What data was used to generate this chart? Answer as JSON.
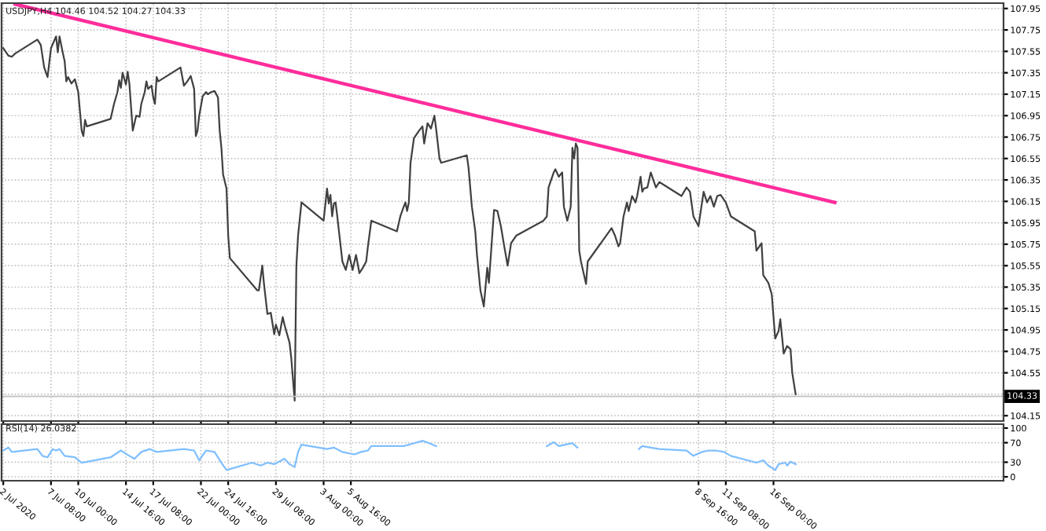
{
  "chart_data": [
    {
      "type": "line",
      "title": "USDJPY,H4 104.46 104.52 104.27 104.33",
      "xlim": [
        "2020-07-02T12:00",
        "2020-10-08T12:00"
      ],
      "xticks": [
        "2020-07-02T16:00",
        "2020-07-07T08:00",
        "2020-07-10T00:00",
        "2020-07-14T16:00",
        "2020-07-17T08:00",
        "2020-07-22T00:00",
        "2020-07-24T16:00",
        "2020-07-29T08:00",
        "2020-08-03T00:00",
        "2020-08-05T16:00",
        "2020-09-08T16:00",
        "2020-09-11T08:00",
        "2020-09-16T00:00"
      ],
      "ylim": [
        104.1,
        108.0
      ],
      "yticks": [
        104.15,
        {
          "value": 104.35,
          "label": null
        },
        104.55,
        104.75,
        104.95,
        105.15,
        105.35,
        105.55,
        105.75,
        105.95,
        106.15,
        106.35,
        106.55,
        106.75,
        106.95,
        107.15,
        107.35,
        107.55,
        107.75,
        107.95
      ],
      "tick_labels": "y",
      "grid": true,
      "line_style": "solid",
      "ref_lines": [
        {
          "axis": "y",
          "value": 104.33,
          "label": "104.33",
          "color": "#c0c0c0"
        }
      ],
      "series": [
        {
          "color": "#404040",
          "x": [
            "2020-07-02T16:00",
            "2020-07-03T04:00",
            "2020-07-03T12:00",
            "2020-07-03T20:00",
            "2020-07-06T00:00",
            "2020-07-06T08:00",
            "2020-07-06T16:00",
            "2020-07-07T00:00",
            "2020-07-07T08:00",
            "2020-07-07T20:00",
            "2020-07-08T00:00",
            "2020-07-08T04:00",
            "2020-07-08T12:00",
            "2020-07-08T16:00",
            "2020-07-08T20:00",
            "2020-07-09T00:00",
            "2020-07-09T08:00",
            "2020-07-09T16:00",
            "2020-07-10T00:00",
            "2020-07-10T08:00",
            "2020-07-10T12:00",
            "2020-07-10T16:00",
            "2020-07-10T20:00",
            "2020-07-13T04:00",
            "2020-07-13T12:00",
            "2020-07-13T20:00",
            "2020-07-14T00:00",
            "2020-07-14T04:00",
            "2020-07-14T08:00",
            "2020-07-14T16:00",
            "2020-07-14T20:00",
            "2020-07-15T00:00",
            "2020-07-15T04:00",
            "2020-07-15T08:00",
            "2020-07-15T16:00",
            "2020-07-16T00:00",
            "2020-07-16T04:00",
            "2020-07-16T12:00",
            "2020-07-16T16:00",
            "2020-07-16T20:00",
            "2020-07-17T04:00",
            "2020-07-17T08:00",
            "2020-07-17T12:00",
            "2020-07-17T16:00",
            "2020-07-17T20:00",
            "2020-07-20T00:00",
            "2020-07-20T08:00",
            "2020-07-20T16:00",
            "2020-07-21T00:00",
            "2020-07-21T08:00",
            "2020-07-21T12:00",
            "2020-07-21T16:00",
            "2020-07-21T20:00",
            "2020-07-22T04:00",
            "2020-07-22T12:00",
            "2020-07-22T16:00",
            "2020-07-23T00:00",
            "2020-07-23T08:00",
            "2020-07-23T16:00",
            "2020-07-23T20:00",
            "2020-07-24T00:00",
            "2020-07-24T04:00",
            "2020-07-24T12:00",
            "2020-07-24T16:00",
            "2020-07-24T20:00",
            "2020-07-27T12:00",
            "2020-07-27T16:00",
            "2020-07-28T00:00",
            "2020-07-28T04:00",
            "2020-07-28T12:00",
            "2020-07-28T20:00",
            "2020-07-29T04:00",
            "2020-07-29T08:00",
            "2020-07-29T16:00",
            "2020-07-30T00:00",
            "2020-07-30T04:00",
            "2020-07-30T16:00",
            "2020-07-30T20:00",
            "2020-07-31T04:00",
            "2020-07-31T08:00",
            "2020-07-31T12:00",
            "2020-07-31T20:00",
            "2020-08-03T00:00",
            "2020-08-03T08:00",
            "2020-08-03T12:00",
            "2020-08-03T16:00",
            "2020-08-03T20:00",
            "2020-08-04T00:00",
            "2020-08-04T04:00",
            "2020-08-04T08:00",
            "2020-08-04T16:00",
            "2020-08-04T20:00",
            "2020-08-05T04:00",
            "2020-08-05T12:00",
            "2020-08-05T20:00",
            "2020-08-06T04:00",
            "2020-08-06T12:00",
            "2020-08-06T20:00",
            "2020-08-07T04:00",
            "2020-08-07T08:00",
            "2020-08-07T16:00",
            "2020-08-10T04:00",
            "2020-08-10T12:00",
            "2020-08-10T20:00",
            "2020-08-11T00:00",
            "2020-08-11T04:00",
            "2020-08-11T08:00",
            "2020-08-11T12:00",
            "2020-08-11T20:00",
            "2020-08-12T08:00",
            "2020-08-12T16:00",
            "2020-08-12T20:00",
            "2020-08-13T04:00",
            "2020-08-13T12:00",
            "2020-08-13T20:00",
            "2020-08-14T00:00",
            "2020-08-14T08:00",
            "2020-08-14T12:00",
            "2020-08-17T00:00",
            "2020-08-17T04:00",
            "2020-08-17T12:00",
            "2020-08-17T20:00",
            "2020-08-18T00:00",
            "2020-08-18T08:00",
            "2020-08-18T16:00",
            "2020-08-19T00:00",
            "2020-08-19T04:00",
            "2020-08-19T16:00",
            "2020-08-20T00:00",
            "2020-08-20T08:00",
            "2020-08-20T16:00",
            "2020-08-21T00:00",
            "2020-08-21T08:00",
            "2020-08-21T20:00",
            "2020-08-24T12:00",
            "2020-08-24T20:00",
            "2020-08-25T00:00",
            "2020-08-25T12:00",
            "2020-08-25T16:00",
            "2020-08-26T00:00",
            "2020-08-26T08:00",
            "2020-08-26T12:00",
            "2020-08-26T20:00",
            "2020-08-27T04:00",
            "2020-08-27T08:00",
            "2020-08-27T12:00",
            "2020-08-27T16:00",
            "2020-08-27T20:00",
            "2020-08-28T00:00",
            "2020-08-28T04:00",
            "2020-08-28T16:00",
            "2020-08-28T20:00",
            "2020-08-31T04:00",
            "2020-08-31T12:00",
            "2020-08-31T20:00",
            "2020-09-01T00:00",
            "2020-09-01T08:00",
            "2020-09-01T16:00",
            "2020-09-01T20:00",
            "2020-09-02T04:00",
            "2020-09-02T12:00",
            "2020-09-02T16:00",
            "2020-09-03T00:00",
            "2020-09-03T04:00",
            "2020-09-03T08:00",
            "2020-09-03T16:00",
            "2020-09-04T00:00",
            "2020-09-04T12:00",
            "2020-09-04T20:00",
            "2020-09-07T00:00",
            "2020-09-07T12:00",
            "2020-09-07T20:00",
            "2020-09-08T04:00",
            "2020-09-08T16:00",
            "2020-09-09T04:00",
            "2020-09-09T12:00",
            "2020-09-09T20:00",
            "2020-09-10T04:00",
            "2020-09-10T12:00",
            "2020-09-10T20:00",
            "2020-09-11T08:00",
            "2020-09-11T20:00",
            "2020-09-14T04:00",
            "2020-09-14T08:00",
            "2020-09-14T20:00",
            "2020-09-15T00:00",
            "2020-09-15T12:00",
            "2020-09-15T20:00",
            "2020-09-16T04:00",
            "2020-09-16T12:00",
            "2020-09-16T16:00",
            "2020-09-17T00:00",
            "2020-09-17T08:00",
            "2020-09-17T16:00",
            "2020-09-17T20:00",
            "2020-09-18T04:00"
          ],
          "values": [
            107.58,
            107.51,
            107.5,
            107.53,
            107.66,
            107.61,
            107.4,
            107.31,
            107.58,
            107.69,
            107.54,
            107.69,
            107.53,
            107.46,
            107.27,
            107.31,
            107.25,
            107.29,
            107.17,
            106.81,
            106.76,
            106.91,
            106.85,
            106.92,
            107.06,
            107.17,
            107.28,
            107.21,
            107.35,
            107.24,
            107.36,
            107.25,
            107.03,
            106.81,
            106.95,
            106.94,
            107.06,
            107.17,
            107.27,
            107.2,
            107.23,
            107.12,
            107.06,
            107.31,
            107.27,
            107.4,
            107.23,
            107.27,
            107.32,
            107.2,
            106.76,
            106.81,
            106.95,
            107.13,
            107.17,
            107.15,
            107.17,
            107.18,
            107.12,
            106.81,
            106.65,
            106.4,
            106.27,
            105.83,
            105.62,
            105.32,
            105.32,
            105.55,
            105.38,
            105.1,
            105.11,
            104.91,
            105.0,
            104.9,
            105.07,
            105.0,
            104.83,
            104.69,
            104.29,
            105.55,
            105.83,
            106.14,
            105.97,
            106.27,
            106.13,
            106.21,
            106.01,
            106.13,
            106.14,
            106.01,
            105.73,
            105.59,
            105.51,
            105.65,
            105.51,
            105.65,
            105.48,
            105.53,
            105.59,
            105.73,
            105.97,
            105.87,
            106.01,
            106.1,
            106.14,
            106.06,
            106.14,
            106.51,
            106.74,
            106.81,
            106.85,
            106.69,
            106.88,
            106.83,
            106.95,
            106.83,
            106.55,
            106.51,
            106.58,
            106.47,
            106.1,
            105.87,
            105.65,
            105.32,
            105.17,
            105.53,
            105.39,
            106.07,
            106.06,
            105.92,
            105.73,
            105.55,
            105.76,
            105.83,
            105.97,
            106.01,
            106.28,
            106.42,
            106.45,
            106.38,
            106.42,
            106.1,
            105.97,
            106.1,
            106.65,
            106.55,
            106.69,
            106.65,
            105.69,
            105.59,
            105.38,
            105.59,
            105.9,
            105.83,
            105.73,
            105.76,
            106.01,
            106.14,
            106.06,
            106.2,
            106.14,
            106.2,
            106.38,
            106.24,
            106.27,
            106.28,
            106.42,
            106.28,
            106.33,
            106.2,
            106.28,
            106.24,
            106.01,
            105.92,
            106.24,
            106.14,
            106.2,
            106.1,
            106.2,
            106.21,
            106.14,
            106.01,
            105.87,
            105.69,
            105.76,
            105.46,
            105.39,
            105.28,
            104.87,
            104.94,
            105.05,
            104.73,
            104.8,
            104.77,
            104.55,
            104.35
          ]
        },
        {
          "type": "line",
          "color": "#ff2d9b",
          "x": [
            "2020-07-03T20:00",
            "2020-09-22T00:00"
          ],
          "values": [
            107.99,
            106.14
          ]
        }
      ]
    },
    {
      "type": "line",
      "title": "RSI(14) 26.0382",
      "xlim": [
        "2020-07-02T12:00",
        "2020-10-08T12:00"
      ],
      "xticks": [
        {
          "value": "2020-07-02T16:00",
          "label": "2 Jul 2020"
        },
        {
          "value": "2020-07-07T08:00",
          "label": "7 Jul 08:00"
        },
        {
          "value": "2020-07-10T00:00",
          "label": "10 Jul 00:00"
        },
        {
          "value": "2020-07-14T16:00",
          "label": "14 Jul 16:00"
        },
        {
          "value": "2020-07-17T08:00",
          "label": "17 Jul 08:00"
        },
        {
          "value": "2020-07-22T00:00",
          "label": "22 Jul 00:00"
        },
        {
          "value": "2020-07-24T16:00",
          "label": "24 Jul 16:00"
        },
        {
          "value": "2020-07-29T08:00",
          "label": "29 Jul 08:00"
        },
        {
          "value": "2020-08-03T00:00",
          "label": "3 Aug 00:00"
        },
        {
          "value": "2020-08-05T16:00",
          "label": "5 Aug 16:00"
        },
        {
          "value": "2020-09-08T16:00",
          "label": "8 Sep 16:00"
        },
        {
          "value": "2020-09-11T08:00",
          "label": "11 Sep 08:00"
        },
        {
          "value": "2020-09-16T00:00",
          "label": "16 Sep 00:00"
        }
      ],
      "ylim": [
        -8,
        108
      ],
      "yticks": [
        0,
        30,
        70,
        100
      ],
      "grid": true,
      "line_style": "solid",
      "series": [
        {
          "color": "#7fbfff",
          "x": [
            "2020-07-02T16:00",
            "2020-07-03T04:00",
            "2020-07-03T12:00",
            "2020-07-06T00:00",
            "2020-07-06T12:00",
            "2020-07-07T00:00",
            "2020-07-07T12:00",
            "2020-07-07T20:00",
            "2020-07-08T04:00",
            "2020-07-08T16:00",
            "2020-07-09T16:00",
            "2020-07-10T08:00",
            "2020-07-13T04:00",
            "2020-07-14T04:00",
            "2020-07-15T00:00",
            "2020-07-15T12:00",
            "2020-07-16T04:00",
            "2020-07-17T00:00",
            "2020-07-17T16:00",
            "2020-07-20T08:00",
            "2020-07-21T08:00",
            "2020-07-21T20:00",
            "2020-07-22T12:00",
            "2020-07-23T08:00",
            "2020-07-24T00:00",
            "2020-07-24T12:00",
            "2020-07-27T00:00",
            "2020-07-27T20:00",
            "2020-07-28T12:00",
            "2020-07-29T04:00",
            "2020-07-30T04:00",
            "2020-07-30T16:00",
            "2020-07-31T04:00",
            "2020-07-31T12:00",
            "2020-07-31T20:00",
            "2020-08-03T08:00",
            "2020-08-04T00:00",
            "2020-08-04T20:00",
            "2020-08-06T00:00",
            "2020-08-06T16:00",
            "2020-08-07T08:00",
            "2020-08-07T16:00",
            "2020-08-10T20:00",
            "2020-08-11T20:00",
            "2020-08-12T16:00",
            "2020-08-13T08:00",
            "2020-08-14T00:00",
            "2020-08-19T00:00",
            "2020-08-24T20:00",
            "2020-08-25T12:00",
            "2020-08-26T00:00",
            "2020-08-27T08:00",
            "2020-08-27T20:00",
            "2020-08-31T20:00",
            "2020-09-02T20:00",
            "2020-09-03T04:00",
            "2020-09-04T00:00",
            "2020-09-04T20:00",
            "2020-09-07T12:00",
            "2020-09-08T04:00",
            "2020-09-09T00:00",
            "2020-09-09T16:00",
            "2020-09-10T08:00",
            "2020-09-11T04:00",
            "2020-09-11T20:00",
            "2020-09-14T08:00",
            "2020-09-15T00:00",
            "2020-09-15T12:00",
            "2020-09-16T04:00",
            "2020-09-16T12:00",
            "2020-09-17T04:00",
            "2020-09-17T08:00",
            "2020-09-17T16:00",
            "2020-09-18T04:00"
          ],
          "values": [
            54,
            60,
            51,
            57,
            43,
            40,
            57,
            54,
            57,
            43,
            40,
            29,
            40,
            54,
            43,
            37,
            51,
            57,
            51,
            57,
            54,
            34,
            54,
            51,
            29,
            14,
            29,
            23,
            29,
            26,
            37,
            26,
            20,
            51,
            66,
            57,
            60,
            51,
            46,
            51,
            54,
            63,
            63,
            69,
            74,
            69,
            63,
            null,
            63,
            71,
            63,
            69,
            60,
            null,
            57,
            63,
            60,
            57,
            54,
            43,
            51,
            54,
            54,
            51,
            43,
            29,
            34,
            23,
            14,
            26,
            29,
            23,
            31,
            26
          ]
        }
      ]
    }
  ]
}
